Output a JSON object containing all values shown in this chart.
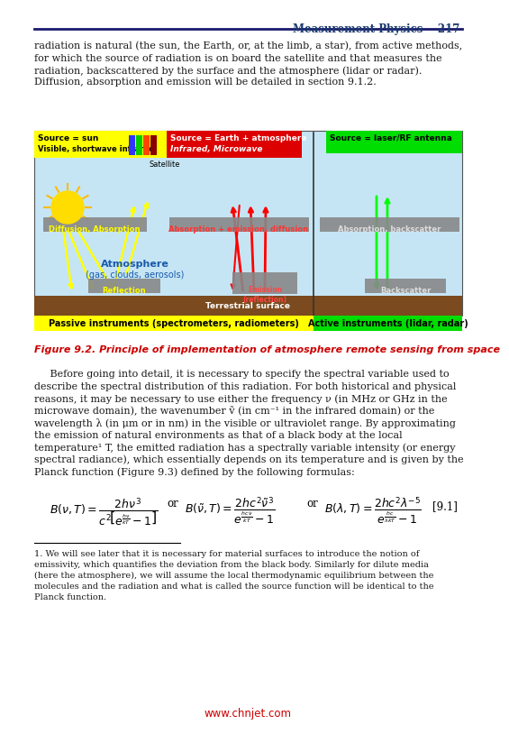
{
  "page_header_text": "Measurement Physics    217",
  "header_line_color": "#1a1a6e",
  "body_text_color": "#1a1a1a",
  "header_text_color": "#1a3a6e",
  "figure_caption_color": "#cc0000",
  "url_color": "#cc0000",
  "background_color": "#ffffff",
  "paragraph1_lines": [
    "radiation is natural (the sun, the Earth, or, at the limb, a star), from active methods,",
    "for which the source of radiation is on board the satellite and that measures the",
    "radiation, backscattered by the surface and the atmosphere (lidar or radar).",
    "Diffusion, absorption and emission will be detailed in section 9.1.2."
  ],
  "figure_caption": "Figure 9.2. Principle of implementation of atmosphere remote sensing from space",
  "paragraph2_lines": [
    "     Before going into detail, it is necessary to specify the spectral variable used to",
    "describe the spectral distribution of this radiation. For both historical and physical",
    "reasons, it may be necessary to use either the frequency ν (in MHz or GHz in the",
    "microwave domain), the wavenumber ṽ (in cm⁻¹ in the infrared domain) or the",
    "wavelength λ (in μm or in nm) in the visible or ultraviolet range. By approximating",
    "the emission of natural environments as that of a black body at the local",
    "temperature¹ T, the emitted radiation has a spectrally variable intensity (or energy",
    "spectral radiance), which essentially depends on its temperature and is given by the",
    "Planck function (Figure 9.3) defined by the following formulas:"
  ],
  "equation_label": "[9.1]",
  "footnote_line_color": "#000000",
  "footnote_lines": [
    "1. We will see later that it is necessary for material surfaces to introduce the notion of",
    "emissivity, which quantifies the deviation from the black body. Similarly for dilute media",
    "(here the atmosphere), we will assume the local thermodynamic equilibrium between the",
    "molecules and the radiation and what is called the source function will be identical to the",
    "Planck function."
  ],
  "url_text": "www.chnjet.com",
  "fig_bg_sky": "#c5e5f5",
  "fig_bg_ground": "#7b4a1e",
  "fig_passive_bg": "#ffff00",
  "fig_active_bg": "#00dd00",
  "fig_source_sun_bg": "#ffff00",
  "fig_source_earth_bg": "#dd0000",
  "fig_source_laser_bg": "#00dd00",
  "fig_gray_box": "#888888",
  "fig_divider_color": "#333333",
  "passive_label": "Passive instruments (spectrometers, radiometers)",
  "active_label": "Active instruments (lidar, radar)",
  "source_sun_line1": "Source = sun",
  "source_sun_line2": "Visible, shortwave infrared",
  "source_earth_line1": "Source = Earth + atmosphere",
  "source_earth_line2": "Infrared, Microwave",
  "source_laser_line1": "Source = laser/RF antenna",
  "atm_line1": "Atmosphere",
  "atm_line2": "(gas, clouds, aerosols)",
  "atm_color": "#1a5aaa",
  "diff_abs_label": "Diffusion, Absorption",
  "abs_em_label": "Absorption + emission, diffusion",
  "abs_back_label": "Absorption, backscatter",
  "reflection_label": "Reflection",
  "emission_label": "Emission\n(reflection)",
  "backscatter_label": "Backscatter",
  "satellite_text": "Satellite",
  "terrestrial_text": "Terrestrial surface"
}
